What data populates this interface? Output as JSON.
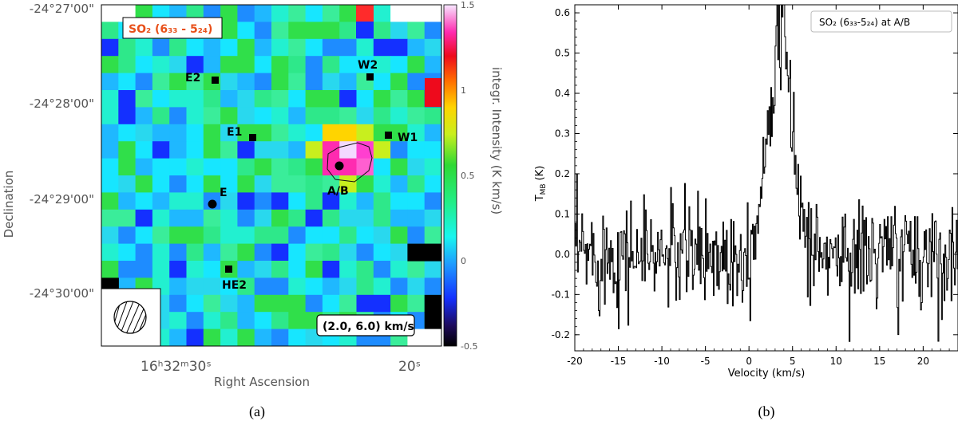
{
  "panel_a": {
    "caption": "(a)",
    "molecule_label": "SO₂ (6₃₃ - 5₂₄)",
    "velocity_range_label": "(2.0, 6.0) km/s",
    "colorbar_label": "integr. Intensity (K km/s)",
    "colors": {
      "accent_label": "#e8501a",
      "source_marker": "#000000"
    }
  },
  "panel_b": {
    "caption": "(b)",
    "legend": "SO₂ (6₃₃-5₂₄) at A/B"
  },
  "chart_data": [
    {
      "type": "heatmap",
      "title": "SO₂ (6₃₃ - 5₂₄)",
      "xlabel": "Right Ascension",
      "ylabel": "Declination",
      "x_ticks": [
        {
          "label": "16ʰ32ᵐ30ˢ",
          "ra_sec": 30
        },
        {
          "label": "20ˢ",
          "ra_sec": 20
        }
      ],
      "y_ticks": [
        {
          "label": "-24°27'00\"",
          "dec_arcmin": -27
        },
        {
          "label": "-24°28'00\"",
          "dec_arcmin": -28
        },
        {
          "label": "-24°29'00\"",
          "dec_arcmin": -29
        },
        {
          "label": "-24°30'00\"",
          "dec_arcmin": -30
        }
      ],
      "colorbar": {
        "label": "integr. Intensity (K km/s)",
        "range": [
          -0.5,
          1.5
        ],
        "ticks": [
          "1.5",
          "1",
          "0.5",
          "0",
          "-0.5"
        ]
      },
      "sources": [
        {
          "name": "W2",
          "marker": "square"
        },
        {
          "name": "E2",
          "marker": "square"
        },
        {
          "name": "E1",
          "marker": "square"
        },
        {
          "name": "W1",
          "marker": "square"
        },
        {
          "name": "A/B",
          "marker": "circle"
        },
        {
          "name": "E",
          "marker": "circle"
        },
        {
          "name": "HE2",
          "marker": "square"
        }
      ],
      "annotation": "(2.0, 6.0) km/s"
    },
    {
      "type": "line",
      "title": "SO₂ (6₃₃-5₂₄) at A/B",
      "xlabel": "Velocity (km/s)",
      "ylabel": "T",
      "ylabel_sub": "MB",
      "ylabel_unit": "(K)",
      "xlim": [
        -20,
        24
      ],
      "ylim": [
        -0.24,
        0.62
      ],
      "x_ticks": [
        "-20",
        "-15",
        "-10",
        "-5",
        "0",
        "5",
        "10",
        "15",
        "20"
      ],
      "y_ticks": [
        "-0.2",
        "-0.1",
        "0.0",
        "0.1",
        "0.2",
        "0.3",
        "0.4",
        "0.5",
        "0.6"
      ],
      "series": [
        {
          "name": "SO₂ (6₃₃-5₂₄) at A/B",
          "profile": "gaussian",
          "peak_velocity": 3.5,
          "peak_temperature": 0.55,
          "fwhm_kms": 3.3,
          "rms_noise": 0.07,
          "channel_width_kms": 0.1
        }
      ]
    }
  ]
}
